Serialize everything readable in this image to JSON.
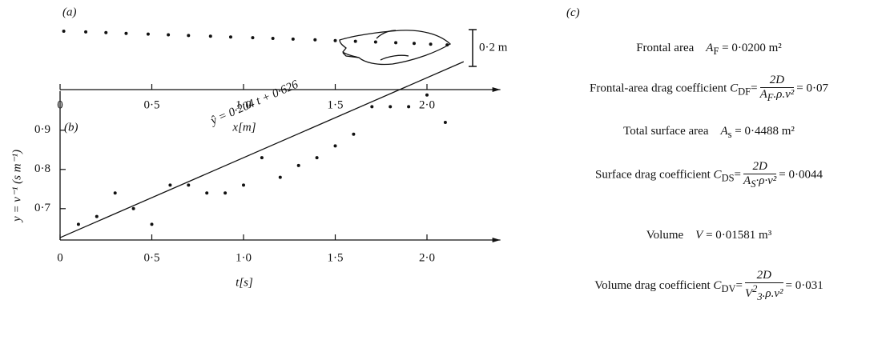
{
  "chart_data": [
    {
      "type": "track",
      "panel": "(a)",
      "xlabel": "x[m]",
      "scale_label": "0·2 m",
      "xlim": [
        0,
        2.4
      ],
      "xticks": [
        0,
        {
          "value": 0.5,
          "label": "0·5"
        },
        {
          "value": 1.0,
          "label": "1·0"
        },
        {
          "value": 1.5,
          "label": "1·5"
        },
        {
          "value": 2.0,
          "label": "2·0"
        }
      ],
      "x": [
        0.02,
        0.14,
        0.25,
        0.36,
        0.48,
        0.59,
        0.7,
        0.82,
        0.93,
        1.05,
        1.16,
        1.27,
        1.39,
        1.5,
        1.61,
        1.72,
        1.83,
        1.93,
        2.02,
        2.11
      ]
    },
    {
      "type": "scatter",
      "panel": "(b)",
      "xlabel": "t[s]",
      "ylabel": "y = v⁻¹ (s m⁻¹)",
      "xlim": [
        0,
        2.4
      ],
      "ylim": [
        0.62,
        1.0
      ],
      "xticks": [
        0,
        {
          "value": 0.5,
          "label": "0·5"
        },
        {
          "value": 1.0,
          "label": "1·0"
        },
        {
          "value": 1.5,
          "label": "1·5"
        },
        {
          "value": 2.0,
          "label": "2·0"
        }
      ],
      "yticks": [
        {
          "value": 0.7,
          "label": "0·7"
        },
        {
          "value": 0.8,
          "label": "0·8"
        },
        {
          "value": 0.9,
          "label": "0·9"
        }
      ],
      "x": [
        0.1,
        0.2,
        0.3,
        0.4,
        0.5,
        0.6,
        0.7,
        0.8,
        0.9,
        1.0,
        1.1,
        1.2,
        1.3,
        1.4,
        1.5,
        1.6,
        1.7,
        1.8,
        1.9,
        2.0,
        2.1
      ],
      "values": [
        0.66,
        0.68,
        0.74,
        0.7,
        0.66,
        0.76,
        0.76,
        0.74,
        0.74,
        0.76,
        0.83,
        0.78,
        0.81,
        0.83,
        0.86,
        0.89,
        0.96,
        0.96,
        0.96,
        0.99,
        0.92
      ],
      "fit": {
        "label": "ŷ = 0·204 t + 0·626",
        "slope": 0.204,
        "intercept": 0.626,
        "xlim": [
          0,
          2.2
        ]
      }
    }
  ],
  "panel_c": {
    "label": "(c)",
    "items": [
      {
        "name": "Frontal area",
        "sym": "A",
        "sym_sub": "F",
        "value": "= 0·0200 m²",
        "coef_name": "Frontal-area drag coefficient",
        "coef_sym": "C",
        "coef_sub": "DF",
        "eq": "=",
        "num": "2D",
        "den": "A",
        "den_sub": "F",
        "den_rest": ".ρ.v²",
        "result": "= 0·07"
      },
      {
        "name": "Total surface area",
        "sym": "A",
        "sym_sub": "s",
        "value": "= 0·4488 m²",
        "coef_name": "Surface drag coefficient",
        "coef_sym": "C",
        "coef_sub": "DS",
        "eq": "=",
        "num": "2D",
        "den": "A",
        "den_sub": "S",
        "den_rest": "·ρ·v²",
        "result": "= 0·0044"
      },
      {
        "name": "Volume",
        "sym": "V",
        "value": "= 0·01581 m³",
        "coef_name": "Volume drag coefficient",
        "coef_sym": "C",
        "coef_sub": "DV",
        "eq": "=",
        "num": "2D",
        "den": "V",
        "den_sup": "2",
        "den_sub": "3",
        "den_rest": ".ρ.v²",
        "result": "= 0·031"
      }
    ]
  }
}
